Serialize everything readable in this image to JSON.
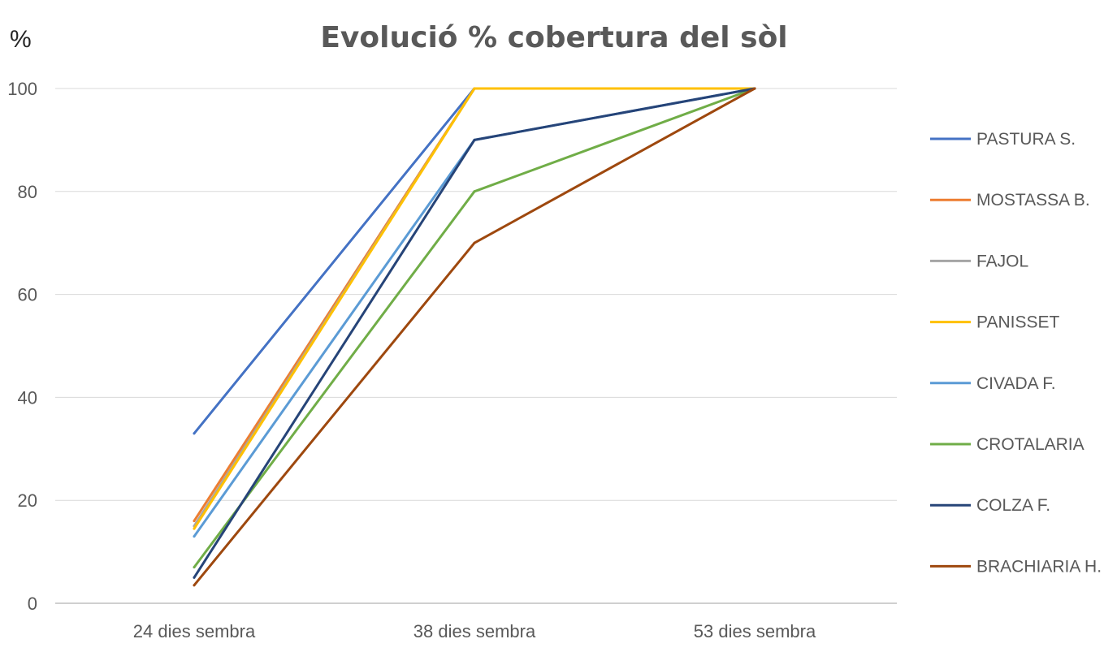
{
  "chart_data": {
    "type": "line",
    "title": "Evolució % cobertura del sòl",
    "ylabel": "%",
    "xlabel": "",
    "categories": [
      "24 dies sembra",
      "38 dies sembra",
      "53 dies sembra"
    ],
    "ylim": [
      0,
      100
    ],
    "yticks": [
      0,
      20,
      40,
      60,
      80,
      100
    ],
    "grid": true,
    "legend_position": "right",
    "series": [
      {
        "name": "PASTURA S.",
        "color": "#4472C4",
        "values": [
          33,
          100,
          100
        ]
      },
      {
        "name": "MOSTASSA B.",
        "color": "#ED7D31",
        "values": [
          16,
          100,
          100
        ]
      },
      {
        "name": "FAJOL",
        "color": "#A5A5A5",
        "values": [
          15,
          100,
          100
        ]
      },
      {
        "name": "PANISSET",
        "color": "#FFC000",
        "values": [
          14.5,
          100,
          100
        ]
      },
      {
        "name": "CIVADA F.",
        "color": "#5B9BD5",
        "values": [
          13,
          90,
          100
        ]
      },
      {
        "name": "CROTALARIA",
        "color": "#70AD47",
        "values": [
          7,
          80,
          100
        ]
      },
      {
        "name": "COLZA F.",
        "color": "#264478",
        "values": [
          5,
          90,
          100
        ]
      },
      {
        "name": "BRACHIARIA H.",
        "color": "#9E480E",
        "values": [
          3.5,
          70,
          100
        ]
      }
    ]
  }
}
